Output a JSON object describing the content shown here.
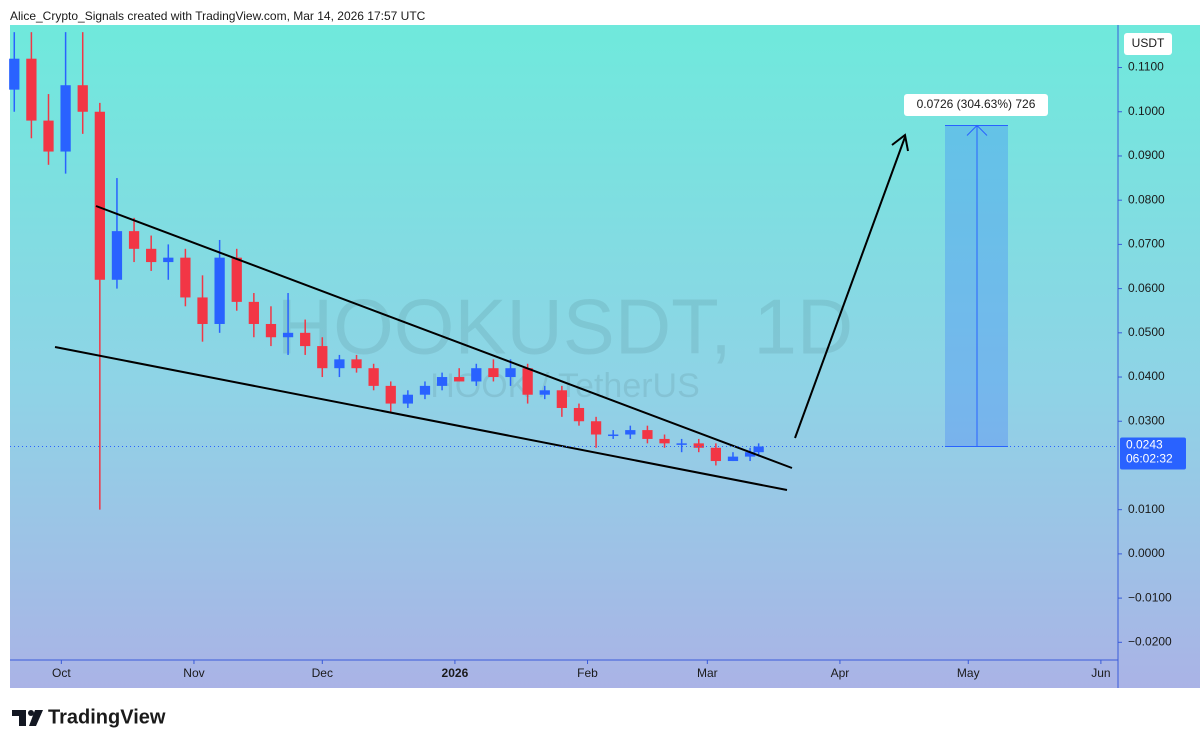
{
  "header": "Alice_Crypto_Signals created with TradingView.com, Mar 14, 2026 17:57 UTC",
  "watermark": {
    "symbol": "HOOKUSDT, 1D",
    "description": "HOOK / TetherUS"
  },
  "logo": "TradingView",
  "chart_data": {
    "type": "candlestick",
    "currency": "USDT",
    "up_color": "#2962ff",
    "down_color": "#f23645",
    "x": [
      -11,
      -7,
      -3,
      1,
      5,
      9,
      13,
      17,
      21,
      25,
      29,
      33,
      37,
      41,
      45,
      49,
      53,
      57,
      61,
      65,
      69,
      73,
      77,
      81,
      85,
      89,
      93,
      97,
      101,
      105,
      109,
      113,
      117,
      121,
      125,
      129,
      133,
      137,
      141,
      145,
      149,
      153,
      157,
      161,
      163
    ],
    "open": [
      0.105,
      0.112,
      0.098,
      0.091,
      0.106,
      0.1,
      0.062,
      0.073,
      0.069,
      0.066,
      0.067,
      0.058,
      0.052,
      0.067,
      0.057,
      0.052,
      0.049,
      0.05,
      0.047,
      0.042,
      0.044,
      0.042,
      0.038,
      0.034,
      0.036,
      0.038,
      0.04,
      0.039,
      0.042,
      0.04,
      0.042,
      0.036,
      0.037,
      0.033,
      0.03,
      0.027,
      0.027,
      0.028,
      0.026,
      0.025,
      0.025,
      0.024,
      0.021,
      0.022,
      0.023
    ],
    "high": [
      0.118,
      0.118,
      0.104,
      0.118,
      0.118,
      0.102,
      0.085,
      0.076,
      0.072,
      0.07,
      0.069,
      0.063,
      0.071,
      0.069,
      0.059,
      0.056,
      0.059,
      0.053,
      0.049,
      0.045,
      0.045,
      0.043,
      0.039,
      0.037,
      0.039,
      0.041,
      0.042,
      0.043,
      0.044,
      0.044,
      0.043,
      0.038,
      0.038,
      0.034,
      0.031,
      0.028,
      0.029,
      0.029,
      0.027,
      0.026,
      0.026,
      0.025,
      0.023,
      0.024,
      0.025
    ],
    "low": [
      0.1,
      0.094,
      0.088,
      0.086,
      0.095,
      0.01,
      0.06,
      0.066,
      0.064,
      0.062,
      0.056,
      0.048,
      0.05,
      0.055,
      0.049,
      0.047,
      0.045,
      0.045,
      0.04,
      0.04,
      0.041,
      0.037,
      0.032,
      0.033,
      0.035,
      0.037,
      0.039,
      0.038,
      0.039,
      0.038,
      0.034,
      0.035,
      0.031,
      0.029,
      0.024,
      0.026,
      0.026,
      0.025,
      0.024,
      0.023,
      0.023,
      0.02,
      0.021,
      0.021,
      0.022
    ],
    "close": [
      0.112,
      0.098,
      0.091,
      0.106,
      0.1,
      0.062,
      0.073,
      0.069,
      0.066,
      0.067,
      0.058,
      0.052,
      0.067,
      0.057,
      0.052,
      0.049,
      0.05,
      0.047,
      0.042,
      0.044,
      0.042,
      0.038,
      0.034,
      0.036,
      0.038,
      0.04,
      0.039,
      0.042,
      0.04,
      0.042,
      0.036,
      0.037,
      0.033,
      0.03,
      0.027,
      0.027,
      0.028,
      0.026,
      0.025,
      0.025,
      0.024,
      0.021,
      0.022,
      0.023,
      0.0243
    ],
    "xlim": [
      -12,
      247
    ],
    "xticks": [
      {
        "value": 0,
        "label": "Oct"
      },
      {
        "value": 31,
        "label": "Nov"
      },
      {
        "value": 61,
        "label": "Dec"
      },
      {
        "value": 92,
        "label": "2026"
      },
      {
        "value": 123,
        "label": "Feb"
      },
      {
        "value": 151,
        "label": "Mar"
      },
      {
        "value": 182,
        "label": "Apr"
      },
      {
        "value": 212,
        "label": "May"
      },
      {
        "value": 243,
        "label": "Jun"
      }
    ],
    "ylim": [
      -0.024,
      0.1203
    ],
    "yticks": [
      {
        "value": 0.11,
        "label": "0.1100"
      },
      {
        "value": 0.1,
        "label": "0.1000"
      },
      {
        "value": 0.09,
        "label": "0.0900"
      },
      {
        "value": 0.08,
        "label": "0.0800"
      },
      {
        "value": 0.07,
        "label": "0.0700"
      },
      {
        "value": 0.06,
        "label": "0.0600"
      },
      {
        "value": 0.05,
        "label": "0.0500"
      },
      {
        "value": 0.04,
        "label": "0.0400"
      },
      {
        "value": 0.03,
        "label": "0.0300"
      },
      {
        "value": 0.01,
        "label": "0.0100"
      },
      {
        "value": 0,
        "label": "0.0000"
      },
      {
        "value": -0.01,
        "label": "−0.0100"
      },
      {
        "value": -0.02,
        "label": "−0.0200"
      }
    ],
    "last_price": 0.0243,
    "countdown": "06:02:32",
    "projection": {
      "change": 0.0726,
      "label": "0.0726 (304.63%) 726"
    }
  }
}
